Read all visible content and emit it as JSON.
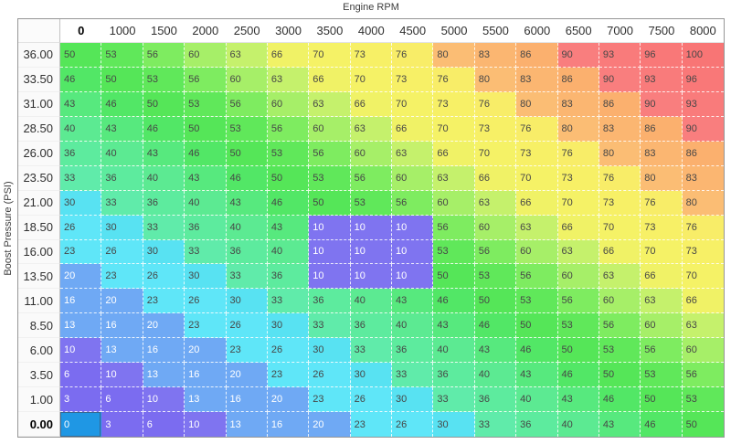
{
  "title": "Engine RPM",
  "y_axis_label": "Boost Pressure (PSI)",
  "columns": [
    "0",
    "1000",
    "1500",
    "2000",
    "2500",
    "3000",
    "3500",
    "4000",
    "4500",
    "5000",
    "5500",
    "6000",
    "6500",
    "7000",
    "7500",
    "8000"
  ],
  "rows": [
    {
      "label": "36.00",
      "values": [
        50,
        53,
        56,
        60,
        63,
        66,
        70,
        73,
        76,
        80,
        83,
        86,
        90,
        93,
        96,
        100
      ]
    },
    {
      "label": "33.50",
      "values": [
        46,
        50,
        53,
        56,
        60,
        63,
        66,
        70,
        73,
        76,
        80,
        83,
        86,
        90,
        93,
        96
      ]
    },
    {
      "label": "31.00",
      "values": [
        43,
        46,
        50,
        53,
        56,
        60,
        63,
        66,
        70,
        73,
        76,
        80,
        83,
        86,
        90,
        93
      ]
    },
    {
      "label": "28.50",
      "values": [
        40,
        43,
        46,
        50,
        53,
        56,
        60,
        63,
        66,
        70,
        73,
        76,
        80,
        83,
        86,
        90
      ]
    },
    {
      "label": "26.00",
      "values": [
        36,
        40,
        43,
        46,
        50,
        53,
        56,
        60,
        63,
        66,
        70,
        73,
        76,
        80,
        83,
        86
      ]
    },
    {
      "label": "23.50",
      "values": [
        33,
        36,
        40,
        43,
        46,
        50,
        53,
        56,
        60,
        63,
        66,
        70,
        73,
        76,
        80,
        83
      ]
    },
    {
      "label": "21.00",
      "values": [
        30,
        33,
        36,
        40,
        43,
        46,
        50,
        53,
        56,
        60,
        63,
        66,
        70,
        73,
        76,
        80
      ]
    },
    {
      "label": "18.50",
      "values": [
        26,
        30,
        33,
        36,
        40,
        43,
        10,
        10,
        10,
        56,
        60,
        63,
        66,
        70,
        73,
        76
      ]
    },
    {
      "label": "16.00",
      "values": [
        23,
        26,
        30,
        33,
        36,
        40,
        10,
        10,
        10,
        53,
        56,
        60,
        63,
        66,
        70,
        73
      ]
    },
    {
      "label": "13.50",
      "values": [
        20,
        23,
        26,
        30,
        33,
        36,
        10,
        10,
        10,
        50,
        53,
        56,
        60,
        63,
        66,
        70
      ]
    },
    {
      "label": "11.00",
      "values": [
        16,
        20,
        23,
        26,
        30,
        33,
        36,
        40,
        43,
        46,
        50,
        53,
        56,
        60,
        63,
        66
      ]
    },
    {
      "label": "8.50",
      "values": [
        13,
        16,
        20,
        23,
        26,
        30,
        33,
        36,
        40,
        43,
        46,
        50,
        53,
        56,
        60,
        63
      ]
    },
    {
      "label": "6.00",
      "values": [
        10,
        13,
        16,
        20,
        23,
        26,
        30,
        33,
        36,
        40,
        43,
        46,
        50,
        53,
        56,
        60
      ]
    },
    {
      "label": "3.50",
      "values": [
        6,
        10,
        13,
        16,
        20,
        23,
        26,
        30,
        33,
        36,
        40,
        43,
        46,
        50,
        53,
        56
      ]
    },
    {
      "label": "1.00",
      "values": [
        3,
        6,
        10,
        13,
        16,
        20,
        23,
        26,
        30,
        33,
        36,
        40,
        43,
        46,
        50,
        53
      ]
    },
    {
      "label": "0.00",
      "values": [
        0,
        3,
        6,
        10,
        13,
        16,
        20,
        23,
        26,
        30,
        33,
        36,
        40,
        43,
        46,
        50
      ]
    }
  ],
  "selected_cell": {
    "row_label": "0.00",
    "col_label": "0"
  },
  "value_colors": {
    "0": "#1f97e4",
    "3": "#7b6cf0",
    "6": "#7b6cf0",
    "10": "#7f74f0",
    "13": "#6fa9f4",
    "16": "#6fa9f4",
    "20": "#6fa9f4",
    "23": "#5fe6f8",
    "26": "#5fe6f8",
    "30": "#58e2f2",
    "33": "#60ebaa",
    "36": "#5deb9e",
    "40": "#5cea92",
    "43": "#57e97e",
    "46": "#52e766",
    "50": "#55e658",
    "53": "#60e85a",
    "56": "#7eec60",
    "60": "#a6ef68",
    "63": "#c5f16c",
    "66": "#f0f266",
    "70": "#f5f266",
    "73": "#f7f066",
    "76": "#f8ed68",
    "80": "#fbbd74",
    "83": "#fbb671",
    "86": "#fbb06e",
    "90": "#f97e7e",
    "93": "#f97b7b",
    "96": "#f97878",
    "100": "#f87575"
  },
  "style": {
    "light_text_max_value": 20,
    "dark_text": "#474747",
    "light_text": "#ffffff",
    "selected_border": "#38678f"
  }
}
